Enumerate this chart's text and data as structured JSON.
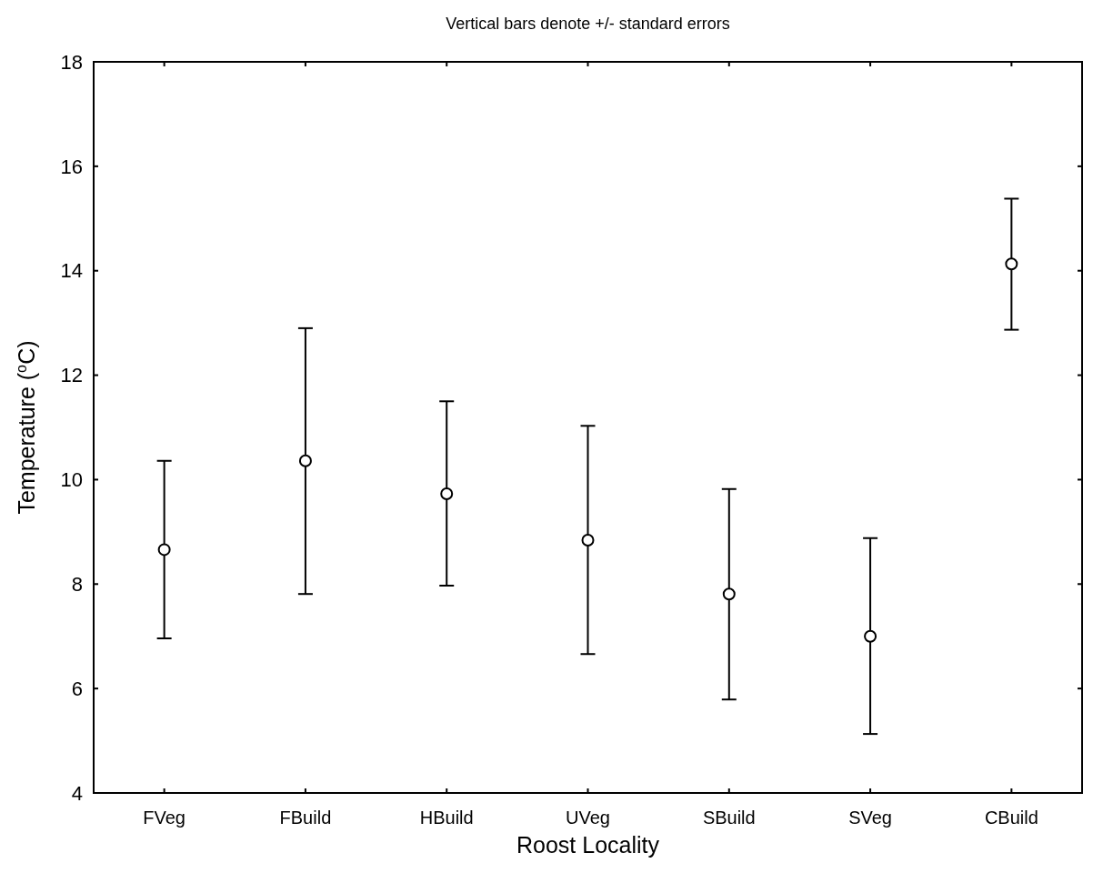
{
  "chart_data": {
    "type": "scatter",
    "title": "Vertical bars denote +/- standard errors",
    "xlabel": "Roost Locality",
    "ylabel": "Temperature ($^{o}$C)",
    "categories": [
      "FVeg",
      "FBuild",
      "HBuild",
      "UVeg",
      "SBuild",
      "SVeg",
      "CBuild"
    ],
    "values": [
      8.66,
      10.36,
      9.73,
      8.84,
      7.81,
      7.0,
      14.13
    ],
    "errors": [
      [
        6.96,
        10.36
      ],
      [
        7.81,
        12.9
      ],
      [
        7.97,
        11.5
      ],
      [
        6.66,
        11.03
      ],
      [
        5.79,
        9.82
      ],
      [
        5.13,
        8.88
      ],
      [
        12.87,
        15.38
      ]
    ],
    "color": "#000000",
    "marker": "circle",
    "grid": false,
    "ylim": [
      4,
      18
    ],
    "yticks": [
      4,
      6,
      8,
      10,
      12,
      14,
      16,
      18
    ]
  }
}
